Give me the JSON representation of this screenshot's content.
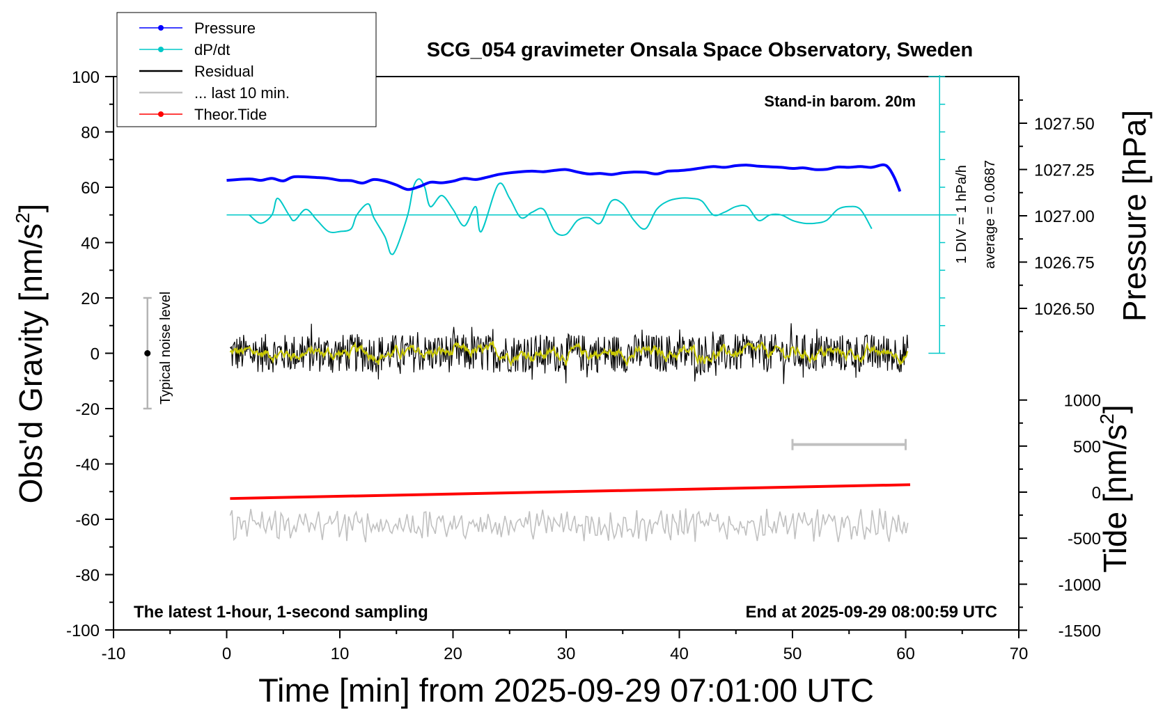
{
  "chart_data": {
    "type": "line",
    "title": "SCG_054 gravimeter Onsala Space Observatory, Sweden",
    "xlabel": "Time [min] from 2025-09-29 07:01:00 UTC",
    "ylabel_left": "Obs'd Gravity [nm/s",
    "ylabel_left_sup": "2",
    "ylabel_left_end": "]",
    "ylabel_right_top": "Pressure [hPa]",
    "ylabel_right_bottom": "Tide [nm/s",
    "ylabel_right_bottom_sup": "2",
    "ylabel_right_bottom_end": "]",
    "xlim": [
      -10,
      70
    ],
    "ylim": [
      -100,
      100
    ],
    "x_ticks": [
      -10,
      0,
      10,
      20,
      30,
      40,
      50,
      60,
      70
    ],
    "y_ticks": [
      100,
      80,
      60,
      40,
      20,
      0,
      -20,
      -40,
      -60,
      -80,
      -100
    ],
    "pressure_axis": {
      "ticks": [
        "1027.50",
        "1027.25",
        "1027.00",
        "1026.75",
        "1026.50"
      ],
      "values": [
        1027.5,
        1027.25,
        1027.0,
        1026.75,
        1026.5
      ]
    },
    "tide_axis": {
      "ticks": [
        "1000",
        "500",
        "0",
        "-500",
        "-1000",
        "-1500"
      ],
      "values": [
        1000,
        500,
        0,
        -500,
        -1000,
        -1500
      ]
    },
    "legend": {
      "placement": "top-left",
      "entries": [
        {
          "label": "Pressure",
          "color": "#0000ff",
          "marker": true
        },
        {
          "label": "dP/dt",
          "color": "#00c8c8",
          "marker": true
        },
        {
          "label": "Residual",
          "color": "#000000",
          "marker": false
        },
        {
          "label": "... last 10 min.",
          "color": "#c0c0c0",
          "marker": false
        },
        {
          "label": "Theor.Tide",
          "color": "#ff0000",
          "marker": true
        }
      ]
    },
    "annotations": {
      "barometer": "Stand-in barom. 20m",
      "div_label": "1 DIV = 1 hPa/h",
      "average_label": "average = 0.0687",
      "noise_label": "Typical noise level",
      "bottom_left": "The latest 1-hour, 1-second sampling",
      "bottom_right": "End at 2025-09-29 08:00:59 UTC"
    },
    "noise_bar": {
      "x": -7,
      "center": 0,
      "low": -20,
      "high": 20
    },
    "last10_bar": {
      "x_start": 50,
      "x_end": 60,
      "y": -33
    },
    "dpdt_baseline_y": 50,
    "colors": {
      "pressure": "#0000ff",
      "dpdt": "#00c8c8",
      "residual": "#000000",
      "residual_smooth": "#c8c800",
      "last10": "#c0c0c0",
      "tide": "#ff0000"
    },
    "series": [
      {
        "name": "Pressure",
        "color": "#0000ff",
        "x": [
          0,
          2,
          3,
          4,
          5,
          6,
          8,
          9,
          10,
          11,
          12,
          13,
          14,
          15,
          16,
          17,
          18,
          19,
          20,
          21,
          22,
          23,
          24,
          25,
          26,
          27,
          28,
          29,
          30,
          31,
          32,
          33,
          34,
          35,
          36,
          37,
          38,
          39,
          40,
          41,
          42,
          43,
          44,
          45,
          46,
          47,
          48,
          49,
          50,
          51,
          52,
          53,
          54,
          55,
          56,
          57,
          58,
          58.5,
          59,
          59.5
        ],
        "y": [
          62.5,
          63,
          62.5,
          63.2,
          62.3,
          63.8,
          63.5,
          63.2,
          62.5,
          62.4,
          61.5,
          62.8,
          62.2,
          60.8,
          59.2,
          60.2,
          61.8,
          61.6,
          62.2,
          63.2,
          62.8,
          63.6,
          64.6,
          65.2,
          65.6,
          65.8,
          65.6,
          66.1,
          66.4,
          65.5,
          64.8,
          65.0,
          64.6,
          65.2,
          65.5,
          65.4,
          64.8,
          65.8,
          66.0,
          66.4,
          67.0,
          67.5,
          67.2,
          67.8,
          68.0,
          67.6,
          67.4,
          67.2,
          66.8,
          67.0,
          66.4,
          66.5,
          67.3,
          67.2,
          67.5,
          67.2,
          68.1,
          67.0,
          63.5,
          58.5
        ]
      },
      {
        "name": "dP/dt",
        "color": "#00c8c8",
        "x": [
          2,
          3,
          4,
          4.5,
          5.5,
          6,
          7,
          8,
          9,
          10,
          11,
          11.5,
          12.5,
          13,
          14,
          14.5,
          15,
          16,
          16.5,
          17,
          17.5,
          18,
          19,
          20,
          21,
          22,
          22.5,
          24,
          25,
          26,
          27,
          28,
          29,
          30,
          31,
          32,
          33,
          34,
          35,
          36,
          37,
          38,
          39,
          40,
          41,
          42,
          43,
          44,
          45,
          46,
          47,
          48,
          49,
          50,
          51,
          52,
          53,
          54,
          55,
          56,
          57
        ],
        "y": [
          50,
          47,
          50,
          56,
          50,
          48,
          52,
          48,
          44,
          44,
          45,
          50,
          54,
          49,
          42,
          36,
          38,
          50,
          60,
          63,
          60,
          53,
          57,
          52,
          46,
          53,
          44,
          61,
          56,
          49,
          51,
          52,
          44,
          43,
          48,
          49,
          47,
          55,
          54,
          48,
          45,
          52,
          55,
          56,
          56,
          55,
          50,
          51,
          53,
          53,
          48,
          50,
          50,
          48,
          47,
          47,
          48,
          52,
          53,
          52,
          45
        ]
      },
      {
        "name": "Theor.Tide",
        "color": "#ff0000",
        "x": [
          0.3,
          60.4
        ],
        "y": [
          -52.5,
          -47.5
        ]
      }
    ]
  }
}
